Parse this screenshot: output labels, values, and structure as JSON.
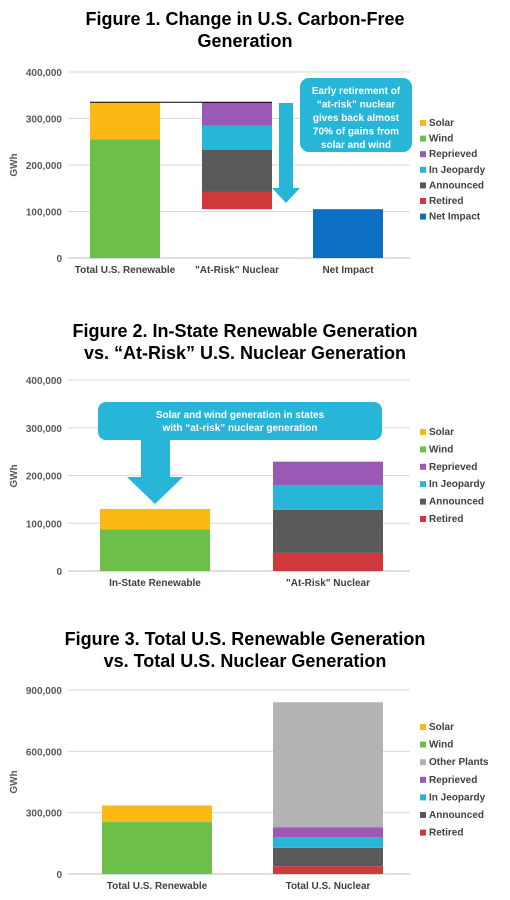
{
  "chart_data": [
    {
      "type": "bar",
      "title_lines": [
        "Figure 1. Change in U.S. Carbon-Free",
        "Generation"
      ],
      "ylabel": "GWh",
      "ylim": [
        0,
        400000
      ],
      "yticks": [
        0,
        100000,
        200000,
        300000,
        400000
      ],
      "ytick_labels": [
        "0",
        "100,000",
        "200,000",
        "300,000",
        "400,000"
      ],
      "categories": [
        "Total U.S. Renewable",
        "\"At-Risk\" Nuclear",
        "Net Impact"
      ],
      "grid": true,
      "legend_position": "right",
      "legend": [
        {
          "label": "Solar",
          "color": "#FDB913"
        },
        {
          "label": "Wind",
          "color": "#6CC04A"
        },
        {
          "label": "Reprieved",
          "color": "#9B59B6"
        },
        {
          "label": "In Jeopardy",
          "color": "#27B6D8"
        },
        {
          "label": "Announced",
          "color": "#595959"
        },
        {
          "label": "Retired",
          "color": "#D0393B"
        },
        {
          "label": "Net Impact",
          "color": "#0B6FC2"
        }
      ],
      "bars": [
        {
          "category": 0,
          "segments": [
            {
              "series": "Wind",
              "from": 0,
              "to": 255000
            },
            {
              "series": "Solar",
              "from": 255000,
              "to": 335000
            }
          ]
        },
        {
          "category": 1,
          "segments": [
            {
              "series": "Retired",
              "from": 105000,
              "to": 143000
            },
            {
              "series": "Announced",
              "from": 143000,
              "to": 233000
            },
            {
              "series": "In Jeopardy",
              "from": 233000,
              "to": 285000
            },
            {
              "series": "Reprieved",
              "from": 285000,
              "to": 335000
            }
          ]
        },
        {
          "category": 2,
          "segments": [
            {
              "series": "Net Impact",
              "from": 0,
              "to": 105000
            }
          ]
        }
      ],
      "connector_value": 335000,
      "callout_lines": [
        "Early retirement of",
        "“at-risk” nuclear",
        "gives back almost",
        "70% of gains from",
        "solar and wind"
      ]
    },
    {
      "type": "bar",
      "title_lines": [
        "Figure 2. In-State Renewable Generation",
        "vs. “At-Risk” U.S. Nuclear Generation"
      ],
      "ylabel": "GWh",
      "ylim": [
        0,
        400000
      ],
      "yticks": [
        0,
        100000,
        200000,
        300000,
        400000
      ],
      "ytick_labels": [
        "0",
        "100,000",
        "200,000",
        "300,000",
        "400,000"
      ],
      "categories": [
        "In-State Renewable",
        "\"At-Risk\" Nuclear"
      ],
      "grid": true,
      "legend_position": "right",
      "legend": [
        {
          "label": "Solar",
          "color": "#FDB913"
        },
        {
          "label": "Wind",
          "color": "#6CC04A"
        },
        {
          "label": "Reprieved",
          "color": "#9B59B6"
        },
        {
          "label": "In Jeopardy",
          "color": "#27B6D8"
        },
        {
          "label": "Announced",
          "color": "#595959"
        },
        {
          "label": "Retired",
          "color": "#D0393B"
        }
      ],
      "bars": [
        {
          "category": 0,
          "segments": [
            {
              "series": "Wind",
              "from": 0,
              "to": 87000
            },
            {
              "series": "Solar",
              "from": 87000,
              "to": 130000
            }
          ]
        },
        {
          "category": 1,
          "segments": [
            {
              "series": "Retired",
              "from": 0,
              "to": 38000
            },
            {
              "series": "Announced",
              "from": 38000,
              "to": 128000
            },
            {
              "series": "In Jeopardy",
              "from": 128000,
              "to": 180000
            },
            {
              "series": "Reprieved",
              "from": 180000,
              "to": 229000
            }
          ]
        }
      ],
      "callout_lines": [
        "Solar and wind generation in states",
        "with “at-risk” nuclear generation"
      ]
    },
    {
      "type": "bar",
      "title_lines": [
        "Figure 3. Total U.S. Renewable Generation",
        "vs. Total U.S. Nuclear Generation"
      ],
      "ylabel": "GWh",
      "ylim": [
        0,
        900000
      ],
      "yticks": [
        0,
        300000,
        600000,
        900000
      ],
      "ytick_labels": [
        "0",
        "300,000",
        "600,000",
        "900,000"
      ],
      "categories": [
        "Total U.S. Renewable",
        "Total U.S. Nuclear"
      ],
      "grid": true,
      "legend_position": "right",
      "legend": [
        {
          "label": "Solar",
          "color": "#FDB913"
        },
        {
          "label": "Wind",
          "color": "#6CC04A"
        },
        {
          "label": "Other Plants",
          "color": "#B3B3B3"
        },
        {
          "label": "Reprieved",
          "color": "#9B59B6"
        },
        {
          "label": "In Jeopardy",
          "color": "#27B6D8"
        },
        {
          "label": "Announced",
          "color": "#595959"
        },
        {
          "label": "Retired",
          "color": "#D0393B"
        }
      ],
      "bars": [
        {
          "category": 0,
          "segments": [
            {
              "series": "Wind",
              "from": 0,
              "to": 254000
            },
            {
              "series": "Solar",
              "from": 254000,
              "to": 335000
            }
          ]
        },
        {
          "category": 1,
          "segments": [
            {
              "series": "Retired",
              "from": 0,
              "to": 38000
            },
            {
              "series": "Announced",
              "from": 38000,
              "to": 128000
            },
            {
              "series": "In Jeopardy",
              "from": 128000,
              "to": 180000
            },
            {
              "series": "Reprieved",
              "from": 180000,
              "to": 229000
            },
            {
              "series": "Other Plants",
              "from": 229000,
              "to": 840000
            }
          ]
        }
      ]
    }
  ]
}
